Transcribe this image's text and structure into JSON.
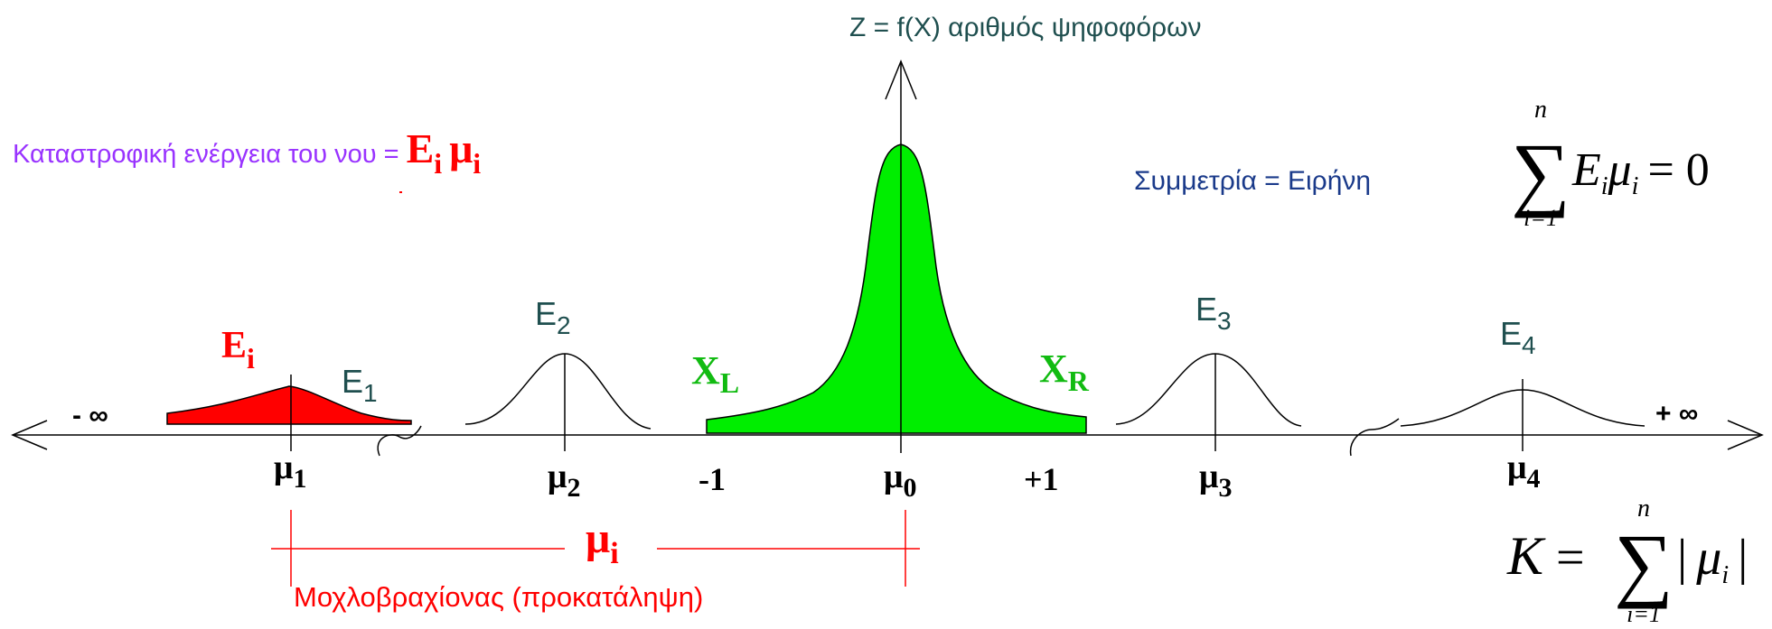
{
  "axis": {
    "title": "Z = f(X) αριθμός ψηφοφόρων",
    "neg_inf": "- ∞",
    "pos_inf": "+ ∞",
    "minus_one": "-1",
    "plus_one": "+1"
  },
  "energy_label": {
    "text": "Καταστροφική ενέργεια του νου =",
    "E": "E",
    "E_sub": "i",
    "mu": "μ",
    "mu_sub": "i"
  },
  "symmetry": {
    "text": "Συμμετρία = Ειρήνη",
    "sum_top": "n",
    "sum_sign": "∑",
    "sum_bottom": "i=1",
    "E": "E",
    "E_sub": "i",
    "mu": "μ",
    "mu_sub": "i",
    "rhs": "= 0"
  },
  "k_formula": {
    "K": "K",
    "eq": "=",
    "sum_top": "n",
    "sum_sign": "∑",
    "sum_bottom": "i=1",
    "bar_left": "|",
    "mu": "μ",
    "mu_sub": "i",
    "bar_right": "|"
  },
  "curves": {
    "Ei": {
      "E": "E",
      "sub": "i"
    },
    "E1": {
      "E": "E",
      "sub": "1"
    },
    "E2": {
      "E": "E",
      "sub": "2"
    },
    "E3": {
      "E": "E",
      "sub": "3"
    },
    "E4": {
      "E": "E",
      "sub": "4"
    },
    "XL": {
      "X": "X",
      "sub": "L"
    },
    "XR": {
      "X": "X",
      "sub": "R"
    }
  },
  "ticks": {
    "mu1": {
      "mu": "μ",
      "sub": "1"
    },
    "mu2": {
      "mu": "μ",
      "sub": "2"
    },
    "mu0": {
      "mu": "μ",
      "sub": "0"
    },
    "mu3": {
      "mu": "μ",
      "sub": "3"
    },
    "mu4": {
      "mu": "μ",
      "sub": "4"
    }
  },
  "lever": {
    "mu": "μ",
    "sub": "i",
    "caption": "Μοχλοβραχίονας (προκατάληψη)"
  },
  "colors": {
    "red": "#ff0000",
    "green": "#00ee00",
    "violet": "#9933ff",
    "navy": "#1a3a8a",
    "teal": "#1f4f4f",
    "black": "#000000"
  }
}
